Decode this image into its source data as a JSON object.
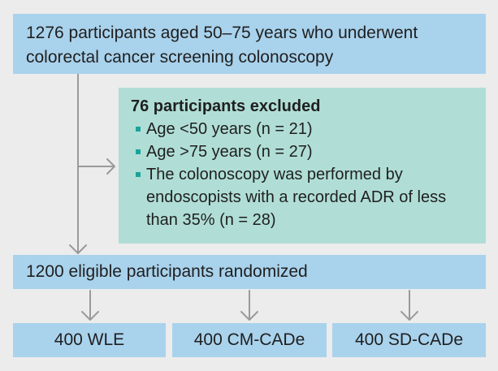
{
  "top_box": {
    "line1": "1276 participants aged 50–75 years who underwent",
    "line2": "colorectal cancer screening colonoscopy"
  },
  "exclusion_box": {
    "title": "76 participants excluded",
    "items": [
      {
        "text": "Age <50 years (n = 21)"
      },
      {
        "text": "Age >75 years (n = 27)"
      },
      {
        "lines": [
          "The colonoscopy was performed by",
          "endoscopists with a recorded ADR of less",
          "than 35% (n = 28)"
        ]
      }
    ]
  },
  "randomized_box": {
    "label": "1200 eligible participants randomized"
  },
  "arms": [
    {
      "label": "400 WLE"
    },
    {
      "label": "400 CM-CADe"
    },
    {
      "label": "400 SD-CADe"
    }
  ],
  "colors": {
    "blue_box": "#a9d2ec",
    "green_box": "#b0ded6",
    "bullet": "#1aa39a",
    "arrow": "#9a9a9a",
    "background": "#ececec"
  }
}
